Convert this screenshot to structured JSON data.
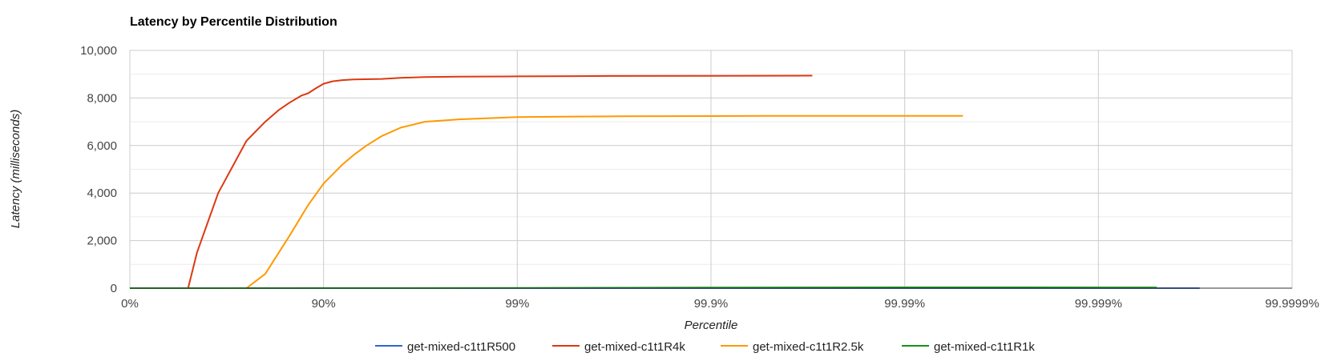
{
  "chart_data": {
    "type": "line",
    "title": "Latency by Percentile Distribution",
    "xlabel": "Percentile",
    "ylabel": "Latency (milliseconds)",
    "x_scale": "log-percentile",
    "x_ticks": [
      "0%",
      "90%",
      "99%",
      "99.9%",
      "99.99%",
      "99.999%",
      "99.9999%"
    ],
    "y_ticks": [
      "0",
      "2,000",
      "4,000",
      "6,000",
      "8,000",
      "10,000"
    ],
    "ylim": [
      0,
      10000
    ],
    "grid": true,
    "legend_position": "bottom",
    "series": [
      {
        "name": "get-mixed-c1t1R500",
        "color": "#3366cc",
        "x": [
          0,
          90,
          99,
          99.9,
          99.99,
          99.9997
        ],
        "values": [
          0,
          0,
          0,
          0,
          0,
          0
        ]
      },
      {
        "name": "get-mixed-c1t1R4k",
        "color": "#dc3912",
        "x": [
          0,
          50,
          55,
          65,
          75,
          80,
          83,
          85,
          87,
          88,
          89,
          90,
          91,
          92,
          93,
          95,
          96,
          97,
          98,
          99,
          99.3,
          99.5,
          99.7,
          99.9,
          99.95,
          99.97
        ],
        "values": [
          0,
          0,
          1500,
          4000,
          6200,
          7000,
          7500,
          7800,
          8100,
          8200,
          8400,
          8600,
          8700,
          8750,
          8780,
          8800,
          8850,
          8880,
          8900,
          8910,
          8915,
          8920,
          8925,
          8930,
          8935,
          8940
        ]
      },
      {
        "name": "get-mixed-c1t1R2.5k",
        "color": "#ff9900",
        "x": [
          0,
          75,
          80,
          85,
          88,
          90,
          92,
          93,
          94,
          95,
          96,
          97,
          98,
          99,
          99.5,
          99.7,
          99.9,
          99.95,
          99.99,
          99.995
        ],
        "values": [
          0,
          0,
          600,
          2200,
          3500,
          4400,
          5200,
          5600,
          6000,
          6400,
          6750,
          7000,
          7100,
          7200,
          7220,
          7230,
          7240,
          7250,
          7250,
          7250
        ]
      },
      {
        "name": "get-mixed-c1t1R1k",
        "color": "#109618",
        "x": [
          0,
          90,
          99,
          99.9,
          99.99,
          99.9995
        ],
        "values": [
          0,
          5,
          10,
          25,
          35,
          30
        ]
      }
    ]
  }
}
